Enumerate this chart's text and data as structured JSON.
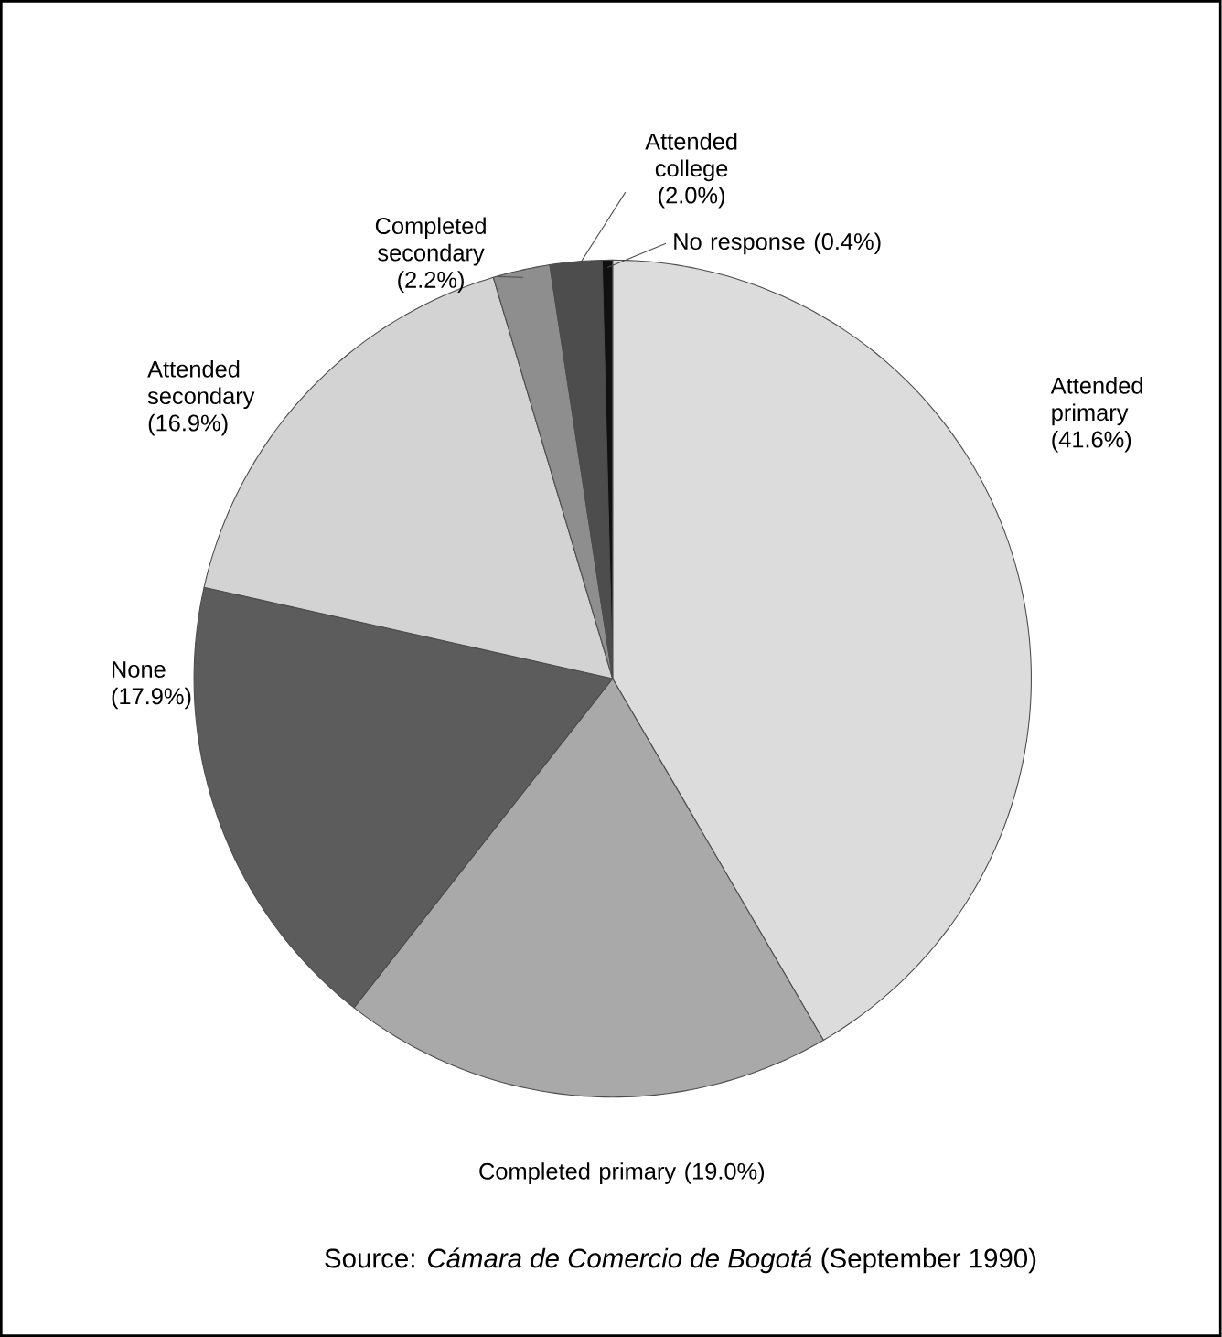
{
  "chart_data": {
    "type": "pie",
    "categories": [
      "Attended primary",
      "Completed primary",
      "None",
      "Attended secondary",
      "Completed secondary",
      "Attended college",
      "No response"
    ],
    "values": [
      41.6,
      19.0,
      17.9,
      16.9,
      2.2,
      2.0,
      0.4
    ],
    "value_labels": [
      "(41.6%)",
      "(19.0%)",
      "(17.9%)",
      "(16.9%)",
      "(2.2%)",
      "(2.0%)",
      "(0.4%)"
    ],
    "colors": [
      "#dcdcdc",
      "#a9a9a9",
      "#5c5c5c",
      "#d3d3d3",
      "#8e8e8e",
      "#4d4d4d",
      "#101010"
    ],
    "annotations": [
      "Source: *Cámara de Comercio de Bogotá* (September 1990)"
    ]
  }
}
